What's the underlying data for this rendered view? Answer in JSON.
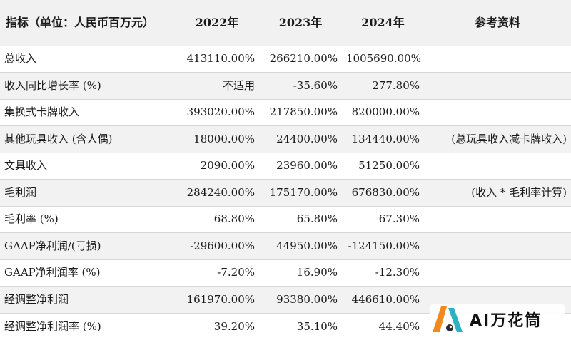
{
  "table": {
    "headers": [
      "指标（单位：人民币百万元）",
      "2022年",
      "2023年",
      "2024年",
      "参考资料"
    ],
    "rows": [
      [
        "总收入",
        "413110.00%",
        "266210.00%",
        "1005690.00%",
        ""
      ],
      [
        "收入同比增长率 (%)",
        "不适用",
        "-35.60%",
        "277.80%",
        ""
      ],
      [
        "集换式卡牌收入",
        "393020.00%",
        "217850.00%",
        "820000.00%",
        ""
      ],
      [
        "其他玩具收入 (含人偶)",
        "18000.00%",
        "24400.00%",
        "134440.00%",
        "(总玩具收入减卡牌收入)"
      ],
      [
        "文具收入",
        "2090.00%",
        "23960.00%",
        "51250.00%",
        ""
      ],
      [
        "毛利润",
        "284240.00%",
        "175170.00%",
        "676830.00%",
        "(收入 * 毛利率计算)"
      ],
      [
        "毛利率 (%)",
        "68.80%",
        "65.80%",
        "67.30%",
        ""
      ],
      [
        "GAAP净利润/(亏损)",
        "-29600.00%",
        "44950.00%",
        "-124150.00%",
        ""
      ],
      [
        "GAAP净利润率 (%)",
        "-7.20%",
        "16.90%",
        "-12.30%",
        ""
      ],
      [
        "经调整净利润",
        "161970.00%",
        "93380.00%",
        "446610.00%",
        ""
      ],
      [
        "经调整净利润率 (%)",
        "39.20%",
        "35.10%",
        "44.40%",
        ""
      ]
    ]
  },
  "watermark": {
    "text": "AI万花筒",
    "icon": "kaleidoscope-logo-icon",
    "colors": {
      "orange": "#f08a1c",
      "teal": "#2bb3c0",
      "dark": "#2b2b2b"
    }
  }
}
